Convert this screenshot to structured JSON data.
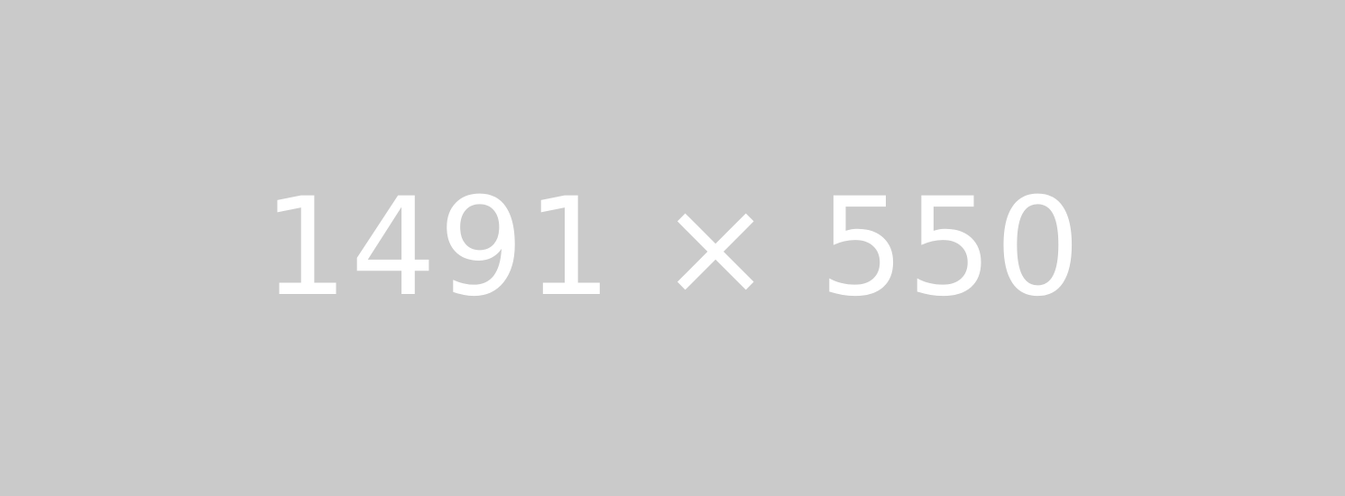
{
  "placeholder": {
    "label": "1491 × 550",
    "background_color": "#cacaca",
    "text_color": "#ffffff"
  }
}
